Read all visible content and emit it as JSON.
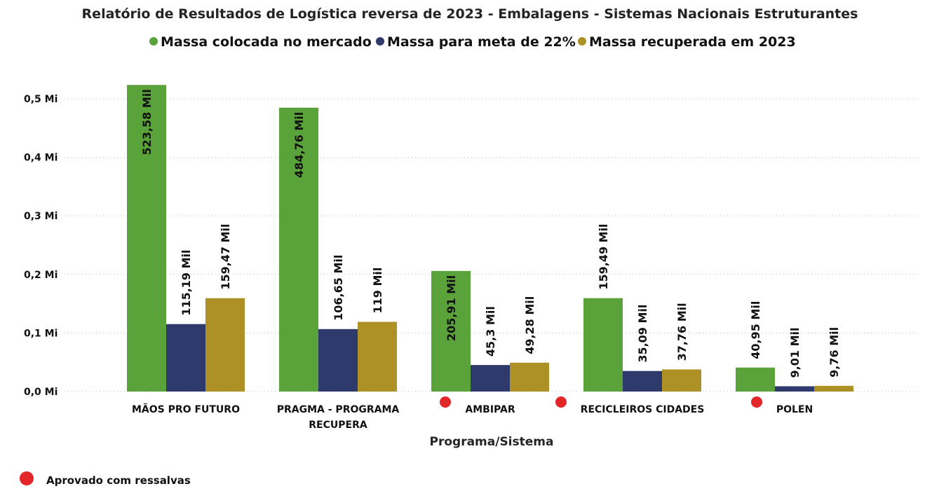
{
  "chart_data": {
    "type": "bar",
    "title": "Relatório de Resultados de Logística reversa de 2023 - Embalagens - Sistemas Nacionais Estruturantes",
    "xlabel": "Programa/Sistema",
    "ylabel": "",
    "ylim": [
      0,
      0.52
    ],
    "yticks": [
      {
        "value": 0.0,
        "label": "0,0 Mi"
      },
      {
        "value": 0.1,
        "label": "0,1 Mi"
      },
      {
        "value": 0.2,
        "label": "0,2 Mi"
      },
      {
        "value": 0.3,
        "label": "0,3 Mi"
      },
      {
        "value": 0.4,
        "label": "0,4 Mi"
      },
      {
        "value": 0.5,
        "label": "0,5 Mi"
      }
    ],
    "grid": true,
    "legend_position": "top-center",
    "categories": [
      {
        "lines": [
          "MÃOS PRO FUTURO"
        ],
        "marker": false
      },
      {
        "lines": [
          "PRAGMA - PROGRAMA",
          "RECUPERA"
        ],
        "marker": false
      },
      {
        "lines": [
          "AMBIPAR"
        ],
        "marker": true
      },
      {
        "lines": [
          "RECICLEIROS CIDADES"
        ],
        "marker": true
      },
      {
        "lines": [
          "POLEN"
        ],
        "marker": true
      }
    ],
    "series": [
      {
        "name": "Massa colocada no mercado",
        "color": "#5aa23a",
        "values": [
          0.52358,
          0.48476,
          0.20591,
          0.15949,
          0.04095
        ],
        "labels": [
          "523,58 Mil",
          "484,76 Mil",
          "205,91 Mil",
          "159,49 Mil",
          "40,95 Mil"
        ]
      },
      {
        "name": "Massa para meta de 22%",
        "color": "#2e3a6c",
        "values": [
          0.11519,
          0.10665,
          0.0453,
          0.03509,
          0.00901
        ],
        "labels": [
          "115,19 Mil",
          "106,65 Mil",
          "45,3 Mil",
          "35,09 Mil",
          "9,01 Mil"
        ]
      },
      {
        "name": "Massa recuperada em 2023",
        "color": "#ad9126",
        "values": [
          0.15947,
          0.119,
          0.04928,
          0.03776,
          0.00976
        ],
        "labels": [
          "159,47 Mil",
          "119 Mil",
          "49,28 Mil",
          "37,76 Mil",
          "9,76 Mil"
        ]
      }
    ],
    "annotation": {
      "marker_color": "#e3262a",
      "label": "Aprovado com ressalvas"
    }
  }
}
